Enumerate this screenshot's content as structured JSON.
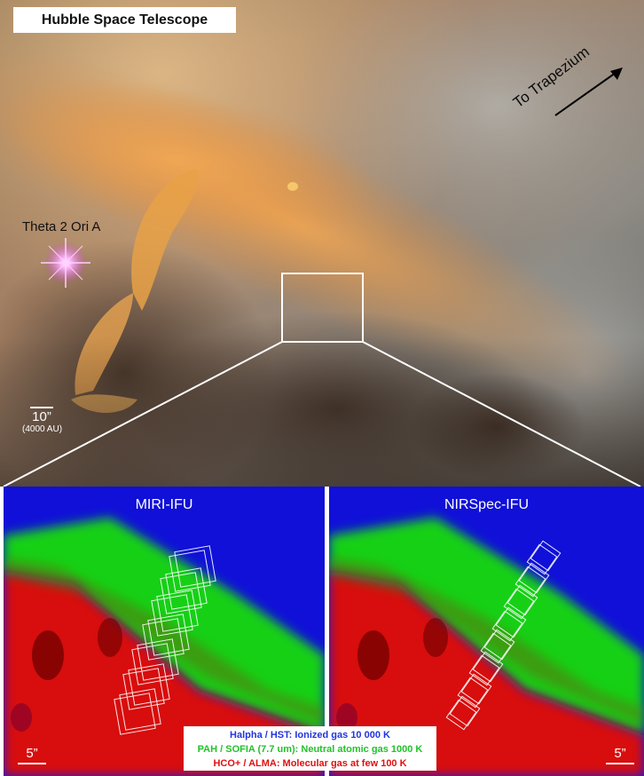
{
  "top_image": {
    "badge": "Hubble Space Telescope",
    "star_label": "Theta 2 Ori A",
    "direction_label": "To Trapezium",
    "scale_value": "10”",
    "scale_note": "(4000 AU)"
  },
  "panels": [
    {
      "title": "MIRI-IFU",
      "scale": "5”"
    },
    {
      "title": "NIRSpec-IFU",
      "scale": "5”"
    }
  ],
  "legend": {
    "items": [
      {
        "text": "Halpha / HST: Ionized gas 10 000 K",
        "color": "#2233dd"
      },
      {
        "text": "PAH / SOFIA (7.7 um): Neutral atomic gas 1000 K",
        "color": "#22c22a"
      },
      {
        "text": "HCO+ / ALMA: Molecular gas at few 100 K",
        "color": "#e01010"
      }
    ]
  },
  "colors": {
    "ionized": "#1010e0",
    "neutral": "#10e010",
    "molecular": "#e00000",
    "nebula_orange": "#d98a3a",
    "outline": "#ffffff"
  }
}
